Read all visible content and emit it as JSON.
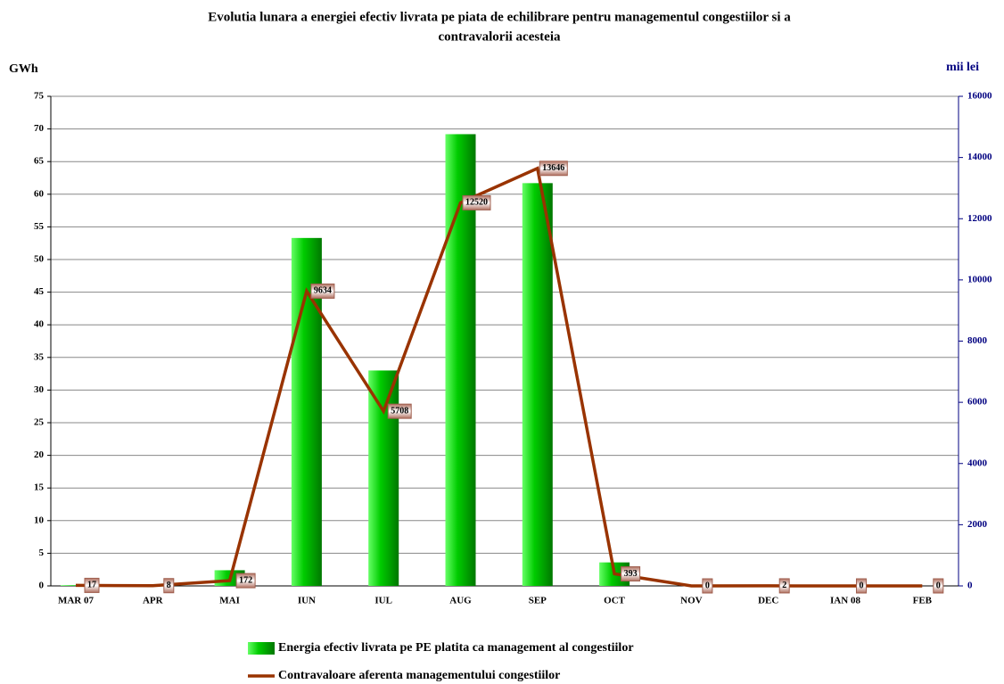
{
  "chart_data": {
    "type": "bar",
    "title": "Evolutia lunara a energiei efectiv livrata pe piata de echilibrare pentru managementul congestiilor si a",
    "subtitle": "contravalorii acesteia",
    "y_label": "GWh",
    "y2_label": "mii lei",
    "categories": [
      "MAR 07",
      "APR",
      "MAI",
      "IUN",
      "IUL",
      "AUG",
      "SEP",
      "OCT",
      "NOV",
      "DEC",
      "IAN 08",
      "FEB"
    ],
    "series": [
      {
        "name": "Energia efectiv livrata pe PE platita ca management al congestiilor",
        "color": "#00bb00",
        "type": "bar",
        "values": [
          0.1,
          0,
          2.4,
          53.3,
          33,
          69.2,
          61.7,
          3.6,
          0,
          0,
          0,
          0
        ]
      },
      {
        "name": "Contravaloare aferenta managementului congestiilor",
        "color": "#993300",
        "type": "line",
        "axis": "y2",
        "values": [
          17,
          8,
          172,
          9634,
          5708,
          12520,
          13646,
          393,
          0,
          2,
          0,
          0
        ]
      }
    ],
    "ylim": [
      0,
      75
    ],
    "yticks": [
      0,
      5,
      10,
      15,
      20,
      25,
      30,
      35,
      40,
      45,
      50,
      55,
      60,
      65,
      70,
      75
    ],
    "y2lim": [
      0,
      16000
    ],
    "y2ticks": [
      0,
      2000,
      4000,
      6000,
      8000,
      10000,
      12000,
      14000,
      16000
    ],
    "grid": true
  }
}
